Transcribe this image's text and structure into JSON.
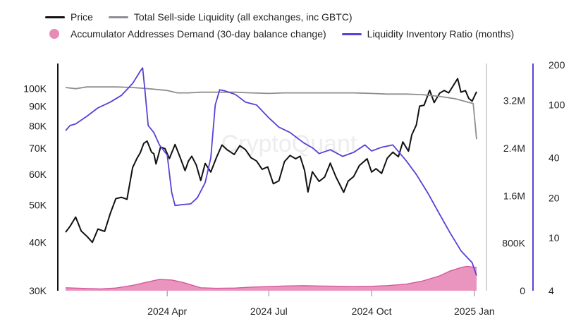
{
  "legend": {
    "price": "Price",
    "sell_side": "Total Sell-side Liquidity (all exchanges, inc GBTC)",
    "accumulator": "Accumulator Addresses Demand (30-day balance change)",
    "ratio": "Liquidity Inventory Ratio (months)"
  },
  "watermark": "CryptoQuant",
  "colors": {
    "price": "#111111",
    "sell_side": "#8e8e93",
    "accumulator_fill": "#e88ab8",
    "accumulator_line": "#d6589b",
    "ratio": "#5b3fd6",
    "axis_right": "#5b3fd6",
    "axis_mid": "#c9c9cc"
  },
  "chart_data": {
    "type": "line",
    "x_range": [
      "2024-01-01",
      "2025-01-03"
    ],
    "x_ticks": [
      {
        "date": "2024-04-01",
        "label": "2024 Apr"
      },
      {
        "date": "2024-07-01",
        "label": "2024 Jul"
      },
      {
        "date": "2024-10-01",
        "label": "2024 Oct"
      },
      {
        "date": "2025-01-01",
        "label": "2025 Jan"
      }
    ],
    "axes": {
      "left": {
        "scale": "log",
        "range": [
          30000,
          115000
        ],
        "ticks": [
          "30K",
          "40K",
          "50K",
          "60K",
          "70K",
          "80K",
          "90K",
          "100K"
        ],
        "tick_values": [
          30000,
          40000,
          50000,
          60000,
          70000,
          80000,
          90000,
          100000
        ]
      },
      "middle": {
        "scale": "linear",
        "range": [
          0,
          3800000
        ],
        "ticks": [
          "0",
          "800K",
          "1.6M",
          "2.4M",
          "3.2M"
        ],
        "tick_values": [
          0,
          800000,
          1600000,
          2400000,
          3200000
        ]
      },
      "right": {
        "scale": "log",
        "range": [
          4,
          200
        ],
        "ticks": [
          "4",
          "10",
          "20",
          "40",
          "100",
          "200"
        ],
        "tick_values": [
          4,
          10,
          20,
          40,
          100,
          200
        ]
      }
    },
    "series": [
      {
        "name": "Price",
        "axis": "left",
        "points": [
          [
            "2024-01-01",
            42500
          ],
          [
            "2024-01-05",
            44000
          ],
          [
            "2024-01-10",
            46500
          ],
          [
            "2024-01-15",
            42800
          ],
          [
            "2024-01-20",
            41500
          ],
          [
            "2024-01-25",
            40000
          ],
          [
            "2024-01-30",
            43300
          ],
          [
            "2024-02-05",
            42700
          ],
          [
            "2024-02-10",
            47500
          ],
          [
            "2024-02-15",
            51900
          ],
          [
            "2024-02-20",
            52300
          ],
          [
            "2024-02-25",
            51700
          ],
          [
            "2024-03-01",
            62400
          ],
          [
            "2024-03-05",
            66000
          ],
          [
            "2024-03-08",
            68300
          ],
          [
            "2024-03-11",
            72100
          ],
          [
            "2024-03-14",
            73100
          ],
          [
            "2024-03-18",
            68400
          ],
          [
            "2024-03-20",
            67800
          ],
          [
            "2024-03-22",
            63800
          ],
          [
            "2024-03-26",
            70500
          ],
          [
            "2024-03-30",
            69900
          ],
          [
            "2024-04-03",
            65900
          ],
          [
            "2024-04-08",
            71600
          ],
          [
            "2024-04-12",
            67000
          ],
          [
            "2024-04-17",
            61300
          ],
          [
            "2024-04-20",
            64900
          ],
          [
            "2024-04-23",
            66800
          ],
          [
            "2024-04-27",
            63400
          ],
          [
            "2024-05-01",
            57800
          ],
          [
            "2024-05-05",
            64000
          ],
          [
            "2024-05-10",
            60800
          ],
          [
            "2024-05-15",
            66200
          ],
          [
            "2024-05-20",
            71400
          ],
          [
            "2024-05-25",
            69300
          ],
          [
            "2024-05-31",
            67500
          ],
          [
            "2024-06-05",
            71100
          ],
          [
            "2024-06-10",
            69500
          ],
          [
            "2024-06-15",
            66200
          ],
          [
            "2024-06-20",
            64900
          ],
          [
            "2024-06-25",
            61800
          ],
          [
            "2024-06-30",
            62700
          ],
          [
            "2024-07-05",
            56700
          ],
          [
            "2024-07-10",
            57700
          ],
          [
            "2024-07-15",
            64700
          ],
          [
            "2024-07-20",
            67100
          ],
          [
            "2024-07-25",
            65800
          ],
          [
            "2024-07-29",
            66800
          ],
          [
            "2024-08-02",
            61400
          ],
          [
            "2024-08-05",
            54000
          ],
          [
            "2024-08-09",
            60900
          ],
          [
            "2024-08-15",
            57500
          ],
          [
            "2024-08-20",
            59000
          ],
          [
            "2024-08-25",
            64100
          ],
          [
            "2024-08-30",
            59100
          ],
          [
            "2024-09-06",
            53900
          ],
          [
            "2024-09-10",
            57600
          ],
          [
            "2024-09-15",
            59200
          ],
          [
            "2024-09-20",
            63200
          ],
          [
            "2024-09-27",
            65800
          ],
          [
            "2024-10-01",
            60800
          ],
          [
            "2024-10-05",
            62000
          ],
          [
            "2024-10-10",
            60300
          ],
          [
            "2024-10-15",
            66000
          ],
          [
            "2024-10-20",
            68400
          ],
          [
            "2024-10-25",
            66600
          ],
          [
            "2024-10-29",
            72700
          ],
          [
            "2024-11-03",
            68800
          ],
          [
            "2024-11-06",
            75900
          ],
          [
            "2024-11-10",
            80400
          ],
          [
            "2024-11-13",
            90000
          ],
          [
            "2024-11-17",
            90500
          ],
          [
            "2024-11-22",
            98900
          ],
          [
            "2024-11-26",
            91900
          ],
          [
            "2024-12-01",
            97200
          ],
          [
            "2024-12-05",
            98800
          ],
          [
            "2024-12-09",
            97400
          ],
          [
            "2024-12-13",
            101500
          ],
          [
            "2024-12-17",
            106000
          ],
          [
            "2024-12-20",
            97800
          ],
          [
            "2024-12-24",
            98700
          ],
          [
            "2024-12-27",
            94200
          ],
          [
            "2024-12-30",
            92700
          ],
          [
            "2025-01-03",
            98100
          ]
        ]
      },
      {
        "name": "Total Sell-side Liquidity (all exchanges, inc GBTC)",
        "axis": "middle",
        "points": [
          [
            "2024-01-01",
            3420000
          ],
          [
            "2024-01-10",
            3400000
          ],
          [
            "2024-01-20",
            3430000
          ],
          [
            "2024-02-01",
            3430000
          ],
          [
            "2024-02-15",
            3430000
          ],
          [
            "2024-03-01",
            3420000
          ],
          [
            "2024-03-15",
            3400000
          ],
          [
            "2024-04-01",
            3370000
          ],
          [
            "2024-04-10",
            3330000
          ],
          [
            "2024-04-20",
            3330000
          ],
          [
            "2024-05-01",
            3340000
          ],
          [
            "2024-05-15",
            3340000
          ],
          [
            "2024-06-01",
            3340000
          ],
          [
            "2024-06-15",
            3330000
          ],
          [
            "2024-07-01",
            3320000
          ],
          [
            "2024-07-15",
            3330000
          ],
          [
            "2024-08-01",
            3330000
          ],
          [
            "2024-08-15",
            3330000
          ],
          [
            "2024-09-01",
            3330000
          ],
          [
            "2024-09-15",
            3330000
          ],
          [
            "2024-10-01",
            3320000
          ],
          [
            "2024-10-15",
            3310000
          ],
          [
            "2024-11-01",
            3310000
          ],
          [
            "2024-11-15",
            3300000
          ],
          [
            "2024-12-01",
            3270000
          ],
          [
            "2024-12-15",
            3230000
          ],
          [
            "2024-12-25",
            3180000
          ],
          [
            "2024-12-31",
            3150000
          ],
          [
            "2025-01-03",
            2550000
          ]
        ]
      },
      {
        "name": "Accumulator Addresses Demand (30-day balance change)",
        "axis": "middle",
        "type": "area",
        "points": [
          [
            "2024-01-01",
            50000
          ],
          [
            "2024-01-15",
            40000
          ],
          [
            "2024-02-01",
            30000
          ],
          [
            "2024-02-15",
            45000
          ],
          [
            "2024-03-01",
            90000
          ],
          [
            "2024-03-15",
            150000
          ],
          [
            "2024-03-25",
            190000
          ],
          [
            "2024-04-05",
            180000
          ],
          [
            "2024-04-15",
            140000
          ],
          [
            "2024-05-01",
            50000
          ],
          [
            "2024-05-15",
            40000
          ],
          [
            "2024-06-01",
            45000
          ],
          [
            "2024-06-15",
            60000
          ],
          [
            "2024-07-01",
            70000
          ],
          [
            "2024-07-15",
            80000
          ],
          [
            "2024-08-01",
            85000
          ],
          [
            "2024-08-15",
            80000
          ],
          [
            "2024-09-01",
            75000
          ],
          [
            "2024-09-15",
            70000
          ],
          [
            "2024-10-01",
            75000
          ],
          [
            "2024-10-15",
            85000
          ],
          [
            "2024-11-01",
            110000
          ],
          [
            "2024-11-15",
            160000
          ],
          [
            "2024-12-01",
            250000
          ],
          [
            "2024-12-10",
            330000
          ],
          [
            "2024-12-20",
            390000
          ],
          [
            "2024-12-25",
            410000
          ],
          [
            "2024-12-30",
            400000
          ],
          [
            "2025-01-03",
            390000
          ]
        ]
      },
      {
        "name": "Liquidity Inventory Ratio (months)",
        "axis": "right",
        "points": [
          [
            "2024-01-01",
            64
          ],
          [
            "2024-01-05",
            70
          ],
          [
            "2024-01-10",
            72
          ],
          [
            "2024-01-20",
            82
          ],
          [
            "2024-01-30",
            95
          ],
          [
            "2024-02-10",
            105
          ],
          [
            "2024-02-20",
            118
          ],
          [
            "2024-03-01",
            145
          ],
          [
            "2024-03-08",
            180
          ],
          [
            "2024-03-10",
            190
          ],
          [
            "2024-03-12",
            130
          ],
          [
            "2024-03-15",
            70
          ],
          [
            "2024-03-20",
            62
          ],
          [
            "2024-03-25",
            50
          ],
          [
            "2024-04-01",
            42
          ],
          [
            "2024-04-05",
            22
          ],
          [
            "2024-04-08",
            17.5
          ],
          [
            "2024-04-15",
            17.8
          ],
          [
            "2024-04-22",
            18
          ],
          [
            "2024-04-28",
            20
          ],
          [
            "2024-05-05",
            26
          ],
          [
            "2024-05-10",
            40
          ],
          [
            "2024-05-14",
            100
          ],
          [
            "2024-05-18",
            130
          ],
          [
            "2024-05-22",
            128
          ],
          [
            "2024-06-01",
            120
          ],
          [
            "2024-06-10",
            105
          ],
          [
            "2024-06-20",
            100
          ],
          [
            "2024-07-01",
            80
          ],
          [
            "2024-07-10",
            68
          ],
          [
            "2024-07-20",
            62
          ],
          [
            "2024-08-01",
            52
          ],
          [
            "2024-08-10",
            47
          ],
          [
            "2024-08-15",
            43
          ],
          [
            "2024-08-25",
            46
          ],
          [
            "2024-09-05",
            41
          ],
          [
            "2024-09-15",
            44
          ],
          [
            "2024-09-25",
            50
          ],
          [
            "2024-10-01",
            45
          ],
          [
            "2024-10-10",
            48
          ],
          [
            "2024-10-20",
            50
          ],
          [
            "2024-11-01",
            38
          ],
          [
            "2024-11-10",
            30
          ],
          [
            "2024-11-20",
            22
          ],
          [
            "2024-12-01",
            15
          ],
          [
            "2024-12-10",
            11
          ],
          [
            "2024-12-20",
            8
          ],
          [
            "2024-12-25",
            7.2
          ],
          [
            "2024-12-30",
            6.5
          ],
          [
            "2025-01-02",
            5.5
          ],
          [
            "2025-01-03",
            5.2
          ]
        ]
      }
    ]
  }
}
